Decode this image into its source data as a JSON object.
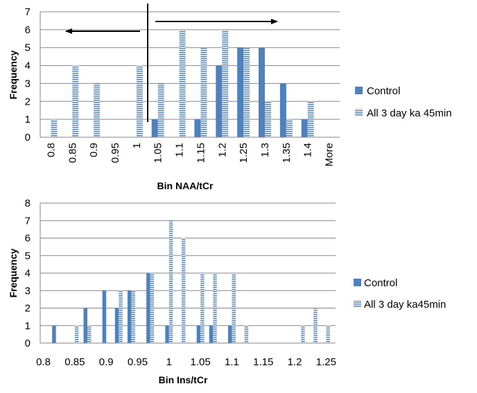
{
  "chart_data": [
    {
      "type": "bar",
      "title": "",
      "xlabel": "Bin NAA/tCr",
      "ylabel": "Frequency",
      "ylim": [
        0,
        7
      ],
      "ytick_step": 1,
      "grid": true,
      "legend_position": "right",
      "categories": [
        "0.8",
        "0.85",
        "0.9",
        "0.95",
        "1",
        "1.05",
        "1.1",
        "1.15",
        "1.2",
        "1.25",
        "1.3",
        "1.35",
        "1.4",
        "More"
      ],
      "series": [
        {
          "name": "Control",
          "color": "#4F81BD",
          "pattern": "solid",
          "values": [
            0,
            0,
            0,
            0,
            0,
            1,
            0,
            1,
            4,
            5,
            5,
            3,
            1,
            0
          ]
        },
        {
          "name": "All 3 day ka 45min",
          "color": "#4F81BD",
          "pattern": "horizontal-stripes",
          "values": [
            1,
            4,
            3,
            0,
            4,
            3,
            6,
            5,
            6,
            5,
            2,
            1,
            2,
            0
          ]
        }
      ],
      "annotations": [
        {
          "type": "vertical-line",
          "at_between": [
            "1",
            "1.05"
          ]
        },
        {
          "type": "arrow",
          "direction": "left"
        },
        {
          "type": "arrow",
          "direction": "right"
        }
      ]
    },
    {
      "type": "bar",
      "title": "",
      "xlabel": "Bin Ins/tCr",
      "ylabel": "Frequency",
      "ylim": [
        0,
        8
      ],
      "ytick_step": 1,
      "grid": true,
      "legend_position": "right",
      "categories": [
        "0.8",
        "0.81",
        "0.82",
        "0.83",
        "0.84",
        "0.85",
        "0.86",
        "0.87",
        "0.88",
        "0.89",
        "0.9",
        "0.91",
        "0.92",
        "0.93",
        "0.94",
        "0.95",
        "0.96",
        "0.97",
        "0.98",
        "0.99",
        "1",
        "1.01",
        "1.02",
        "1.03",
        "1.04",
        "1.05",
        "1.06",
        "1.07",
        "1.08",
        "1.09",
        "1.1",
        "1.11",
        "1.12",
        "1.13",
        "1.14",
        "1.15",
        "1.16",
        "1.17",
        "1.18",
        "1.19",
        "1.2",
        "1.21",
        "1.22",
        "1.23",
        "1.24",
        "1.25",
        "1.26"
      ],
      "tick_labels": [
        "0.8",
        "0.85",
        "0.9",
        "0.95",
        "1",
        "1.05",
        "1.1",
        "1.15",
        "1.2",
        "1.25"
      ],
      "series": [
        {
          "name": "Control",
          "color": "#4F81BD",
          "pattern": "solid",
          "values": [
            0,
            0,
            1,
            0,
            0,
            0,
            0,
            2,
            0,
            0,
            3,
            0,
            2,
            0,
            3,
            0,
            0,
            4,
            0,
            0,
            1,
            0,
            0,
            0,
            0,
            1,
            0,
            1,
            0,
            0,
            1,
            0,
            0,
            0,
            0,
            0,
            0,
            0,
            0,
            0,
            0,
            0,
            0,
            0,
            0,
            0,
            0
          ]
        },
        {
          "name": "All 3 day ka45min",
          "color": "#4F81BD",
          "pattern": "horizontal-stripes",
          "values": [
            0,
            0,
            0,
            0,
            0,
            1,
            0,
            1,
            0,
            0,
            0,
            0,
            3,
            0,
            3,
            0,
            0,
            4,
            0,
            0,
            7,
            0,
            6,
            0,
            0,
            4,
            0,
            4,
            0,
            0,
            4,
            0,
            1,
            0,
            0,
            0,
            0,
            0,
            0,
            0,
            0,
            1,
            0,
            2,
            0,
            1,
            0
          ]
        }
      ]
    }
  ]
}
